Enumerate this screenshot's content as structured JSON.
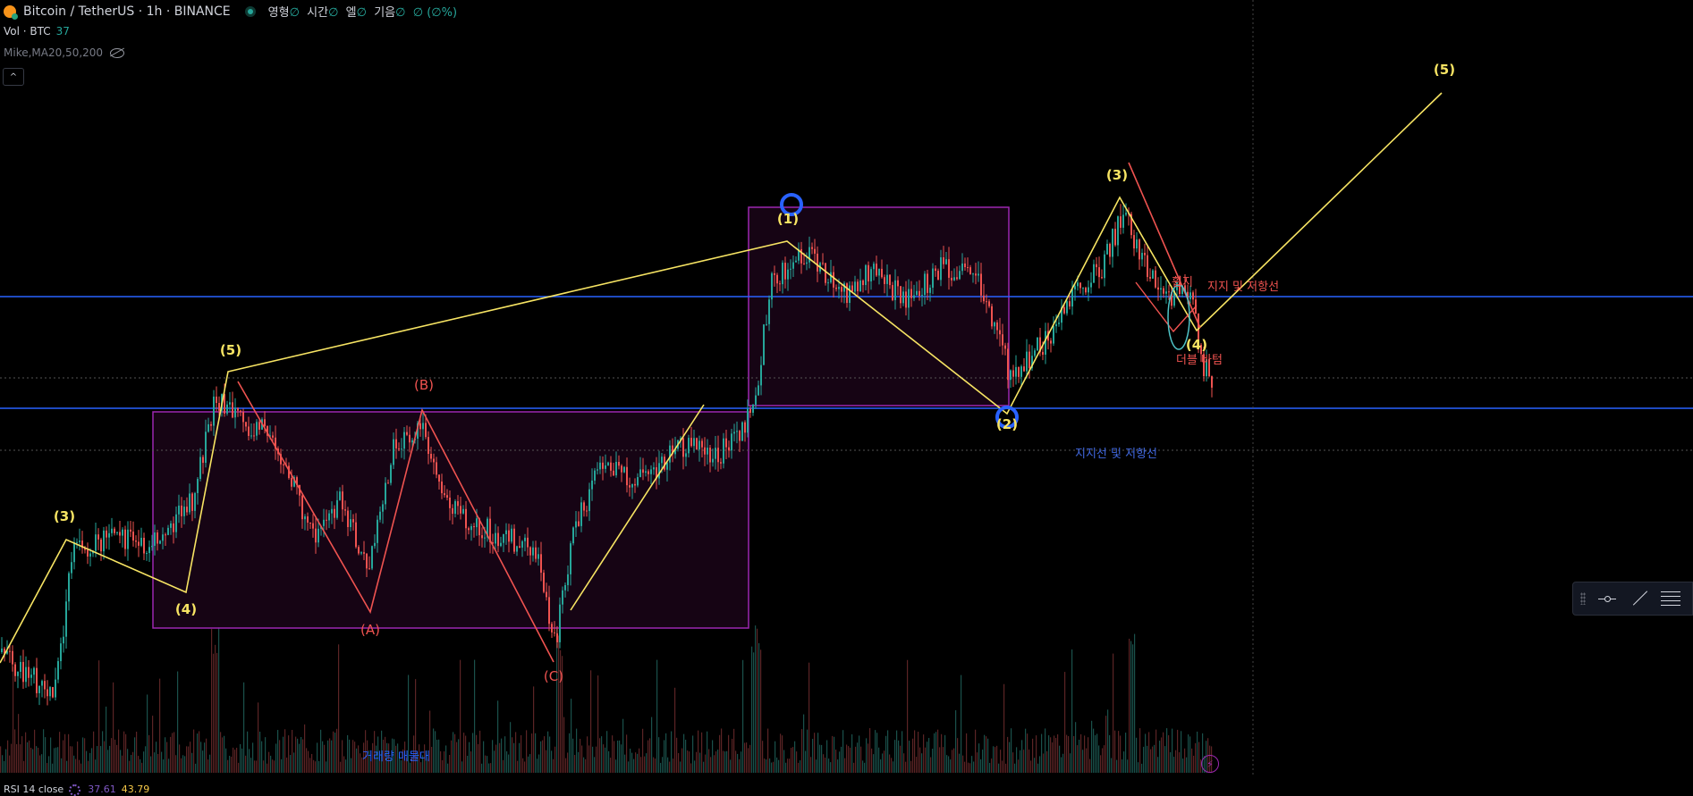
{
  "header": {
    "symbol_icon": "btc-usdt-coin-icon",
    "title": "Bitcoin / TetherUS · 1h · BINANCE",
    "status_icon": "market-open-dot-icon",
    "ohlc": [
      {
        "label": "영형",
        "value": "∅"
      },
      {
        "label": "시간",
        "value": "∅"
      },
      {
        "label": "엘",
        "value": "∅"
      },
      {
        "label": "기음",
        "value": "∅"
      }
    ],
    "change": "∅ (∅%)"
  },
  "indicators": {
    "volume": {
      "label": "Vol · BTC",
      "value": "37"
    },
    "ma": {
      "label": "Mike,MA20,50,200",
      "icon": "eye-hidden-icon"
    },
    "collapse_icon": "chevron-up-icon",
    "rsi": {
      "label": "RSI 14 close",
      "icon": "gear-icon",
      "value1": "37.61",
      "value2": "43.79"
    }
  },
  "toolbar": {
    "icons": [
      "drag-grip-icon",
      "horizontal-line-icon",
      "trend-line-icon",
      "settings-menu-icon"
    ]
  },
  "chart_data": {
    "type": "candlestick",
    "symbol": "BTC/USDT",
    "timeframe": "1h",
    "exchange": "BINANCE",
    "colors": {
      "up": "#26a69a",
      "down": "#ef5350",
      "impulse_wave": "#f7e463",
      "corrective_wave": "#ef5350",
      "horizontal_line": "#2962ff",
      "box": "#9c27b0",
      "circle": "#2962ff",
      "annotation_blue": "#4169e1"
    },
    "wave_labels_yellow": [
      "(3)",
      "(4)",
      "(5)",
      "(1)",
      "(2)",
      "(3)",
      "(4)",
      "(5)"
    ],
    "wave_labels_red": [
      "(A)",
      "(B)",
      "(C)"
    ],
    "annotations": [
      {
        "text": "지지 및 저항선",
        "color": "#ef5350"
      },
      {
        "text": "지지선 및 저항선",
        "color": "#4169e1"
      },
      {
        "text": "더블 바텀",
        "color": "#ef5350"
      },
      {
        "text": "휩지",
        "color": "#ef5350"
      },
      {
        "text": "거래량 매물대",
        "color": "#2962ff"
      }
    ],
    "horizontal_lines": 2,
    "boxes": 2,
    "dotted_lines": 2,
    "grid": false
  },
  "lightning_icon": "lightning-icon"
}
